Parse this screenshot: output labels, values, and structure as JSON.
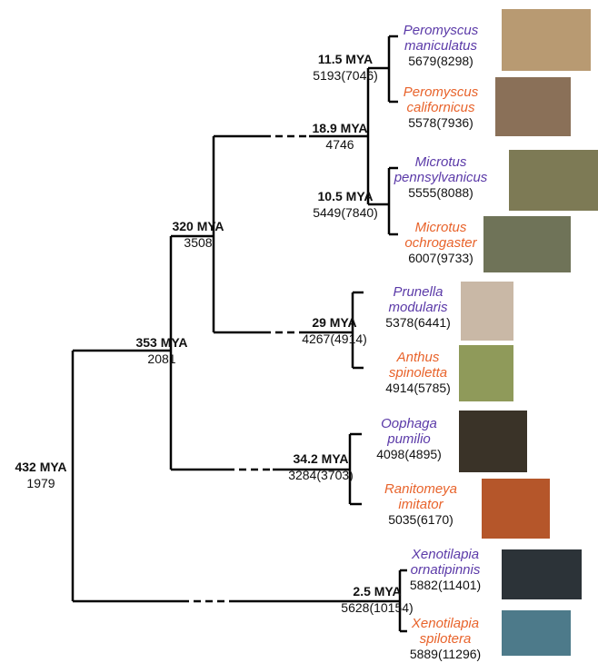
{
  "nodes": [
    {
      "age": "432 MYA",
      "count": "1979"
    },
    {
      "age": "353 MYA",
      "count": "2081"
    },
    {
      "age": "320 MYA",
      "count": "3508"
    },
    {
      "age": "18.9 MYA",
      "count": "4746"
    },
    {
      "age": "11.5 MYA",
      "count": "5193(7046)"
    },
    {
      "age": "10.5 MYA",
      "count": "5449(7840)"
    },
    {
      "age": "29 MYA",
      "count": "4267(4914)"
    },
    {
      "age": "34.2 MYA",
      "count": "3284(3703)"
    },
    {
      "age": "2.5 MYA",
      "count": "5628(10154)"
    }
  ],
  "leaves": [
    {
      "genus": "Peromyscus",
      "species": "maniculatus",
      "count": "5679(8298)"
    },
    {
      "genus": "Peromyscus",
      "species": "californicus",
      "count": "5578(7936)"
    },
    {
      "genus": "Microtus",
      "species": "pennsylvanicus",
      "count": "5555(8088)"
    },
    {
      "genus": "Microtus",
      "species": "ochrogaster",
      "count": "6007(9733)"
    },
    {
      "genus": "Prunella",
      "species": "modularis",
      "count": "5378(6441)"
    },
    {
      "genus": "Anthus",
      "species": "spinoletta",
      "count": "4914(5785)"
    },
    {
      "genus": "Oophaga",
      "species": "pumilio",
      "count": "4098(4895)"
    },
    {
      "genus": "Ranitomeya",
      "species": "imitator",
      "count": "5035(6170)"
    },
    {
      "genus": "Xenotilapia",
      "species": "ornatipinnis",
      "count": "5882(11401)"
    },
    {
      "genus": "Xenotilapia",
      "species": "spilotera",
      "count": "5889(11296)"
    }
  ]
}
